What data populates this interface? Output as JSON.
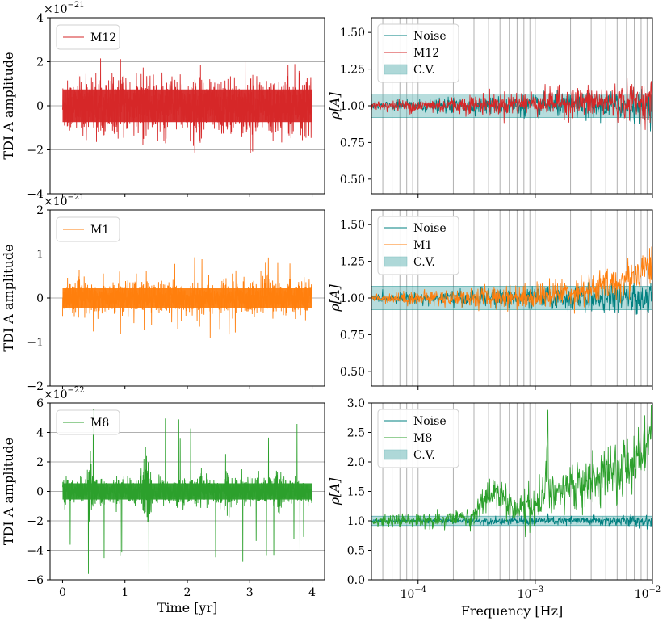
{
  "colors": {
    "m12": "#d62728",
    "m1": "#ff7f0e",
    "m8": "#2ca02c",
    "noise": "#008080",
    "cv": "#5fb3b3",
    "grid": "#b0b0b0"
  },
  "xlabel_time": "Time [yr]",
  "xlabel_freq": "Frequency [Hz]",
  "chart_data": [
    {
      "id": "time-m12",
      "type": "line",
      "title": "",
      "ylabel": "TDI A amplitude",
      "xlabel": "",
      "multiplier": {
        "base": "×10",
        "exp": "−21"
      },
      "xlim": [
        -0.2,
        4.2
      ],
      "ylim": [
        -4,
        4
      ],
      "xticks": [
        0,
        1,
        2,
        3,
        4
      ],
      "xticklabels": [
        "",
        "",
        "",
        "",
        ""
      ],
      "yticks": [
        -4,
        -2,
        0,
        2,
        4
      ],
      "yticklabels": [
        "−4",
        "−2",
        "0",
        "2",
        "4"
      ],
      "legend_position": "top-left",
      "series": [
        {
          "name": "M12",
          "color": "#d62728",
          "envelope": {
            "x": [
              0,
              4
            ],
            "typical_abs": 1.35,
            "max_abs": 2.15
          },
          "x": [
            0,
            1,
            2,
            3,
            4
          ],
          "values": [
            0,
            0,
            0,
            0,
            0
          ]
        }
      ]
    },
    {
      "id": "freq-m12",
      "type": "line",
      "ylabel": "ρ[A]",
      "xscale": "log",
      "xlim": [
        4e-05,
        0.01
      ],
      "ylim": [
        0.4,
        1.6
      ],
      "yticks": [
        0.5,
        0.75,
        1.0,
        1.25,
        1.5
      ],
      "yticklabels": [
        "0.50",
        "0.75",
        "1.00",
        "1.25",
        "1.50"
      ],
      "xticks": [
        0.0001,
        0.001,
        0.01
      ],
      "xticklabels": [
        "",
        "",
        ""
      ],
      "legend_position": "top-left",
      "cv_band": [
        0.92,
        1.08
      ],
      "legend": [
        "Noise",
        "M12",
        "C.V."
      ],
      "series": [
        {
          "name": "Noise",
          "color": "#008080",
          "x": [
            4e-05,
            0.0001,
            0.001,
            0.01
          ],
          "values": [
            1.0,
            1.0,
            1.0,
            1.0
          ]
        },
        {
          "name": "M12",
          "color": "#d62728",
          "x": [
            4e-05,
            0.0001,
            0.001,
            0.01
          ],
          "values": [
            1.0,
            1.0,
            1.02,
            1.03
          ]
        }
      ]
    },
    {
      "id": "time-m1",
      "type": "line",
      "ylabel": "TDI A amplitude",
      "multiplier": {
        "base": "×10",
        "exp": "−21"
      },
      "xlim": [
        -0.2,
        4.2
      ],
      "ylim": [
        -2,
        2
      ],
      "xticks": [
        0,
        1,
        2,
        3,
        4
      ],
      "xticklabels": [
        "",
        "",
        "",
        "",
        ""
      ],
      "yticks": [
        -2,
        -1,
        0,
        1,
        2
      ],
      "yticklabels": [
        "−2",
        "−1",
        "0",
        "1",
        "2"
      ],
      "legend_position": "top-left",
      "series": [
        {
          "name": "M1",
          "color": "#ff7f0e",
          "envelope": {
            "x": [
              0,
              4
            ],
            "typical_abs": 0.4,
            "max_abs": 0.95
          },
          "x": [
            0,
            1,
            2,
            3,
            4
          ],
          "values": [
            0,
            0,
            0,
            0,
            0
          ]
        }
      ]
    },
    {
      "id": "freq-m1",
      "type": "line",
      "ylabel": "ρ[A]",
      "xscale": "log",
      "xlim": [
        4e-05,
        0.01
      ],
      "ylim": [
        0.4,
        1.6
      ],
      "yticks": [
        0.5,
        0.75,
        1.0,
        1.25,
        1.5
      ],
      "yticklabels": [
        "0.50",
        "0.75",
        "1.00",
        "1.25",
        "1.50"
      ],
      "xticks": [
        0.0001,
        0.001,
        0.01
      ],
      "xticklabels": [
        "",
        "",
        ""
      ],
      "legend_position": "top-left",
      "cv_band": [
        0.92,
        1.08
      ],
      "legend": [
        "Noise",
        "M1",
        "C.V."
      ],
      "series": [
        {
          "name": "Noise",
          "color": "#008080",
          "x": [
            4e-05,
            0.0001,
            0.001,
            0.01
          ],
          "values": [
            1.0,
            1.0,
            1.0,
            1.0
          ]
        },
        {
          "name": "M1",
          "color": "#ff7f0e",
          "x": [
            4e-05,
            0.0001,
            0.001,
            0.003,
            0.006,
            0.01
          ],
          "values": [
            1.0,
            1.0,
            1.01,
            1.06,
            1.12,
            1.25
          ]
        }
      ]
    },
    {
      "id": "time-m8",
      "type": "line",
      "ylabel": "TDI A amplitude",
      "xlabel": "Time [yr]",
      "multiplier": {
        "base": "×10",
        "exp": "−22"
      },
      "xlim": [
        -0.2,
        4.2
      ],
      "ylim": [
        -6,
        6
      ],
      "xticks": [
        0,
        1,
        2,
        3,
        4
      ],
      "xticklabels": [
        "0",
        "1",
        "2",
        "3",
        "4"
      ],
      "yticks": [
        -6,
        -4,
        -2,
        0,
        2,
        4,
        6
      ],
      "yticklabels": [
        "−6",
        "−4",
        "−2",
        "0",
        "2",
        "4",
        "6"
      ],
      "legend_position": "top-left",
      "series": [
        {
          "name": "M8",
          "color": "#2ca02c",
          "envelope": {
            "x": [
              0,
              4
            ],
            "typical_abs": 1.0,
            "max_abs": 5.6
          },
          "x": [
            0,
            1,
            2,
            3,
            4
          ],
          "values": [
            0,
            0,
            0,
            0,
            0
          ]
        }
      ]
    },
    {
      "id": "freq-m8",
      "type": "line",
      "ylabel": "ρ[A]",
      "xlabel": "Frequency [Hz]",
      "xscale": "log",
      "xlim": [
        4e-05,
        0.01
      ],
      "ylim": [
        0.0,
        3.0
      ],
      "yticks": [
        0.0,
        0.5,
        1.0,
        1.5,
        2.0,
        2.5,
        3.0
      ],
      "yticklabels": [
        "0.0",
        "0.5",
        "1.0",
        "1.5",
        "2.0",
        "2.5",
        "3.0"
      ],
      "xticks": [
        0.0001,
        0.001,
        0.01
      ],
      "xticklabels": [
        "10",
        "10",
        "10"
      ],
      "xtickexps": [
        "−4",
        "−3",
        "−2"
      ],
      "legend_position": "top-left",
      "cv_band": [
        0.92,
        1.08
      ],
      "legend": [
        "Noise",
        "M8",
        "C.V."
      ],
      "series": [
        {
          "name": "Noise",
          "color": "#008080",
          "x": [
            4e-05,
            0.0001,
            0.001,
            0.01
          ],
          "values": [
            1.0,
            1.0,
            1.0,
            1.0
          ]
        },
        {
          "name": "M8",
          "color": "#2ca02c",
          "x": [
            4e-05,
            0.0001,
            0.0002,
            0.0003,
            0.00047,
            0.00052,
            0.0006,
            0.0008,
            0.001,
            0.0012,
            0.00128,
            0.0013,
            0.00145,
            0.002,
            0.003,
            0.005,
            0.007,
            0.01
          ],
          "values": [
            1.0,
            1.0,
            1.02,
            1.08,
            1.6,
            1.3,
            1.25,
            1.2,
            1.25,
            1.35,
            2.75,
            1.45,
            1.45,
            1.55,
            1.65,
            1.8,
            2.05,
            2.5
          ]
        }
      ]
    }
  ]
}
